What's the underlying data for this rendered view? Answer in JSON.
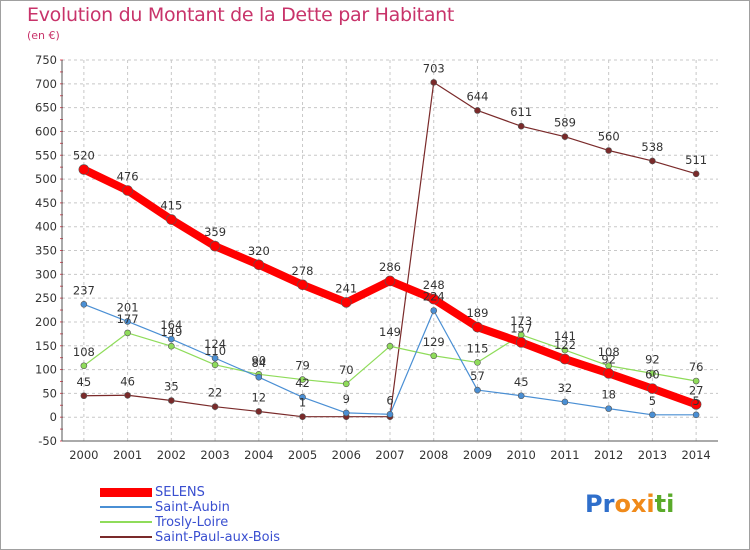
{
  "title": "Evolution du Montant de la Dette par Habitant",
  "subtitle": "(en €)",
  "logo": {
    "letters": [
      "P",
      "r",
      "o",
      "x",
      "i",
      "t",
      "i"
    ],
    "colors": [
      "#2f6fcb",
      "#2f6fcb",
      "#f08a1a",
      "#f08a1a",
      "#f08a1a",
      "#5aaa2a",
      "#5aaa2a"
    ]
  },
  "chart_data": {
    "type": "line",
    "title": "Evolution du Montant de la Dette par Habitant",
    "xlabel": "",
    "ylabel": "(en €)",
    "x": [
      "2000",
      "2001",
      "2002",
      "2003",
      "2004",
      "2005",
      "2006",
      "2007",
      "2008",
      "2009",
      "2010",
      "2011",
      "2012",
      "2013",
      "2014"
    ],
    "ylim": [
      -50,
      750
    ],
    "yticks": [
      "-50",
      "0",
      "50",
      "100",
      "150",
      "200",
      "250",
      "300",
      "350",
      "400",
      "450",
      "500",
      "550",
      "600",
      "650",
      "700",
      "750"
    ],
    "grid": true,
    "legend_position": "bottom-left",
    "series": [
      {
        "name": "SELENS",
        "color": "#ff0000",
        "values": [
          520,
          476,
          415,
          359,
          320,
          278,
          241,
          286,
          248,
          189,
          157,
          122,
          92,
          60,
          27
        ],
        "labels": [
          "520",
          "476",
          "415",
          "359",
          "320",
          "278",
          "241",
          "286",
          "248",
          "189",
          "157",
          "122",
          "92",
          "60",
          "27"
        ]
      },
      {
        "name": "Saint-Aubin",
        "color": "#4a8fd4",
        "values": [
          237,
          201,
          164,
          124,
          84,
          42,
          9,
          6,
          224,
          57,
          45,
          32,
          18,
          5,
          5
        ],
        "labels": [
          "237",
          "201",
          "164",
          "124",
          "84",
          "42",
          "9",
          "6",
          "224",
          "57",
          "45",
          "32",
          "18",
          "5",
          "5"
        ]
      },
      {
        "name": "Trosly-Loire",
        "color": "#8fdc5a",
        "values": [
          108,
          177,
          149,
          110,
          90,
          79,
          70,
          149,
          129,
          115,
          173,
          141,
          108,
          92,
          76
        ],
        "labels": [
          "108",
          "177",
          "149",
          "110",
          "90",
          "79",
          "70",
          "149",
          "129",
          "115",
          "173",
          "141",
          "108",
          "92",
          "76"
        ]
      },
      {
        "name": "Saint-Paul-aux-Bois",
        "color": "#7a2a2a",
        "values": [
          45,
          46,
          35,
          22,
          12,
          1,
          1,
          1,
          703,
          644,
          611,
          589,
          560,
          538,
          511
        ],
        "labels": [
          "45",
          "46",
          "35",
          "22",
          "12",
          "1",
          "",
          "",
          "703",
          "644",
          "611",
          "589",
          "560",
          "538",
          "511"
        ]
      }
    ]
  }
}
